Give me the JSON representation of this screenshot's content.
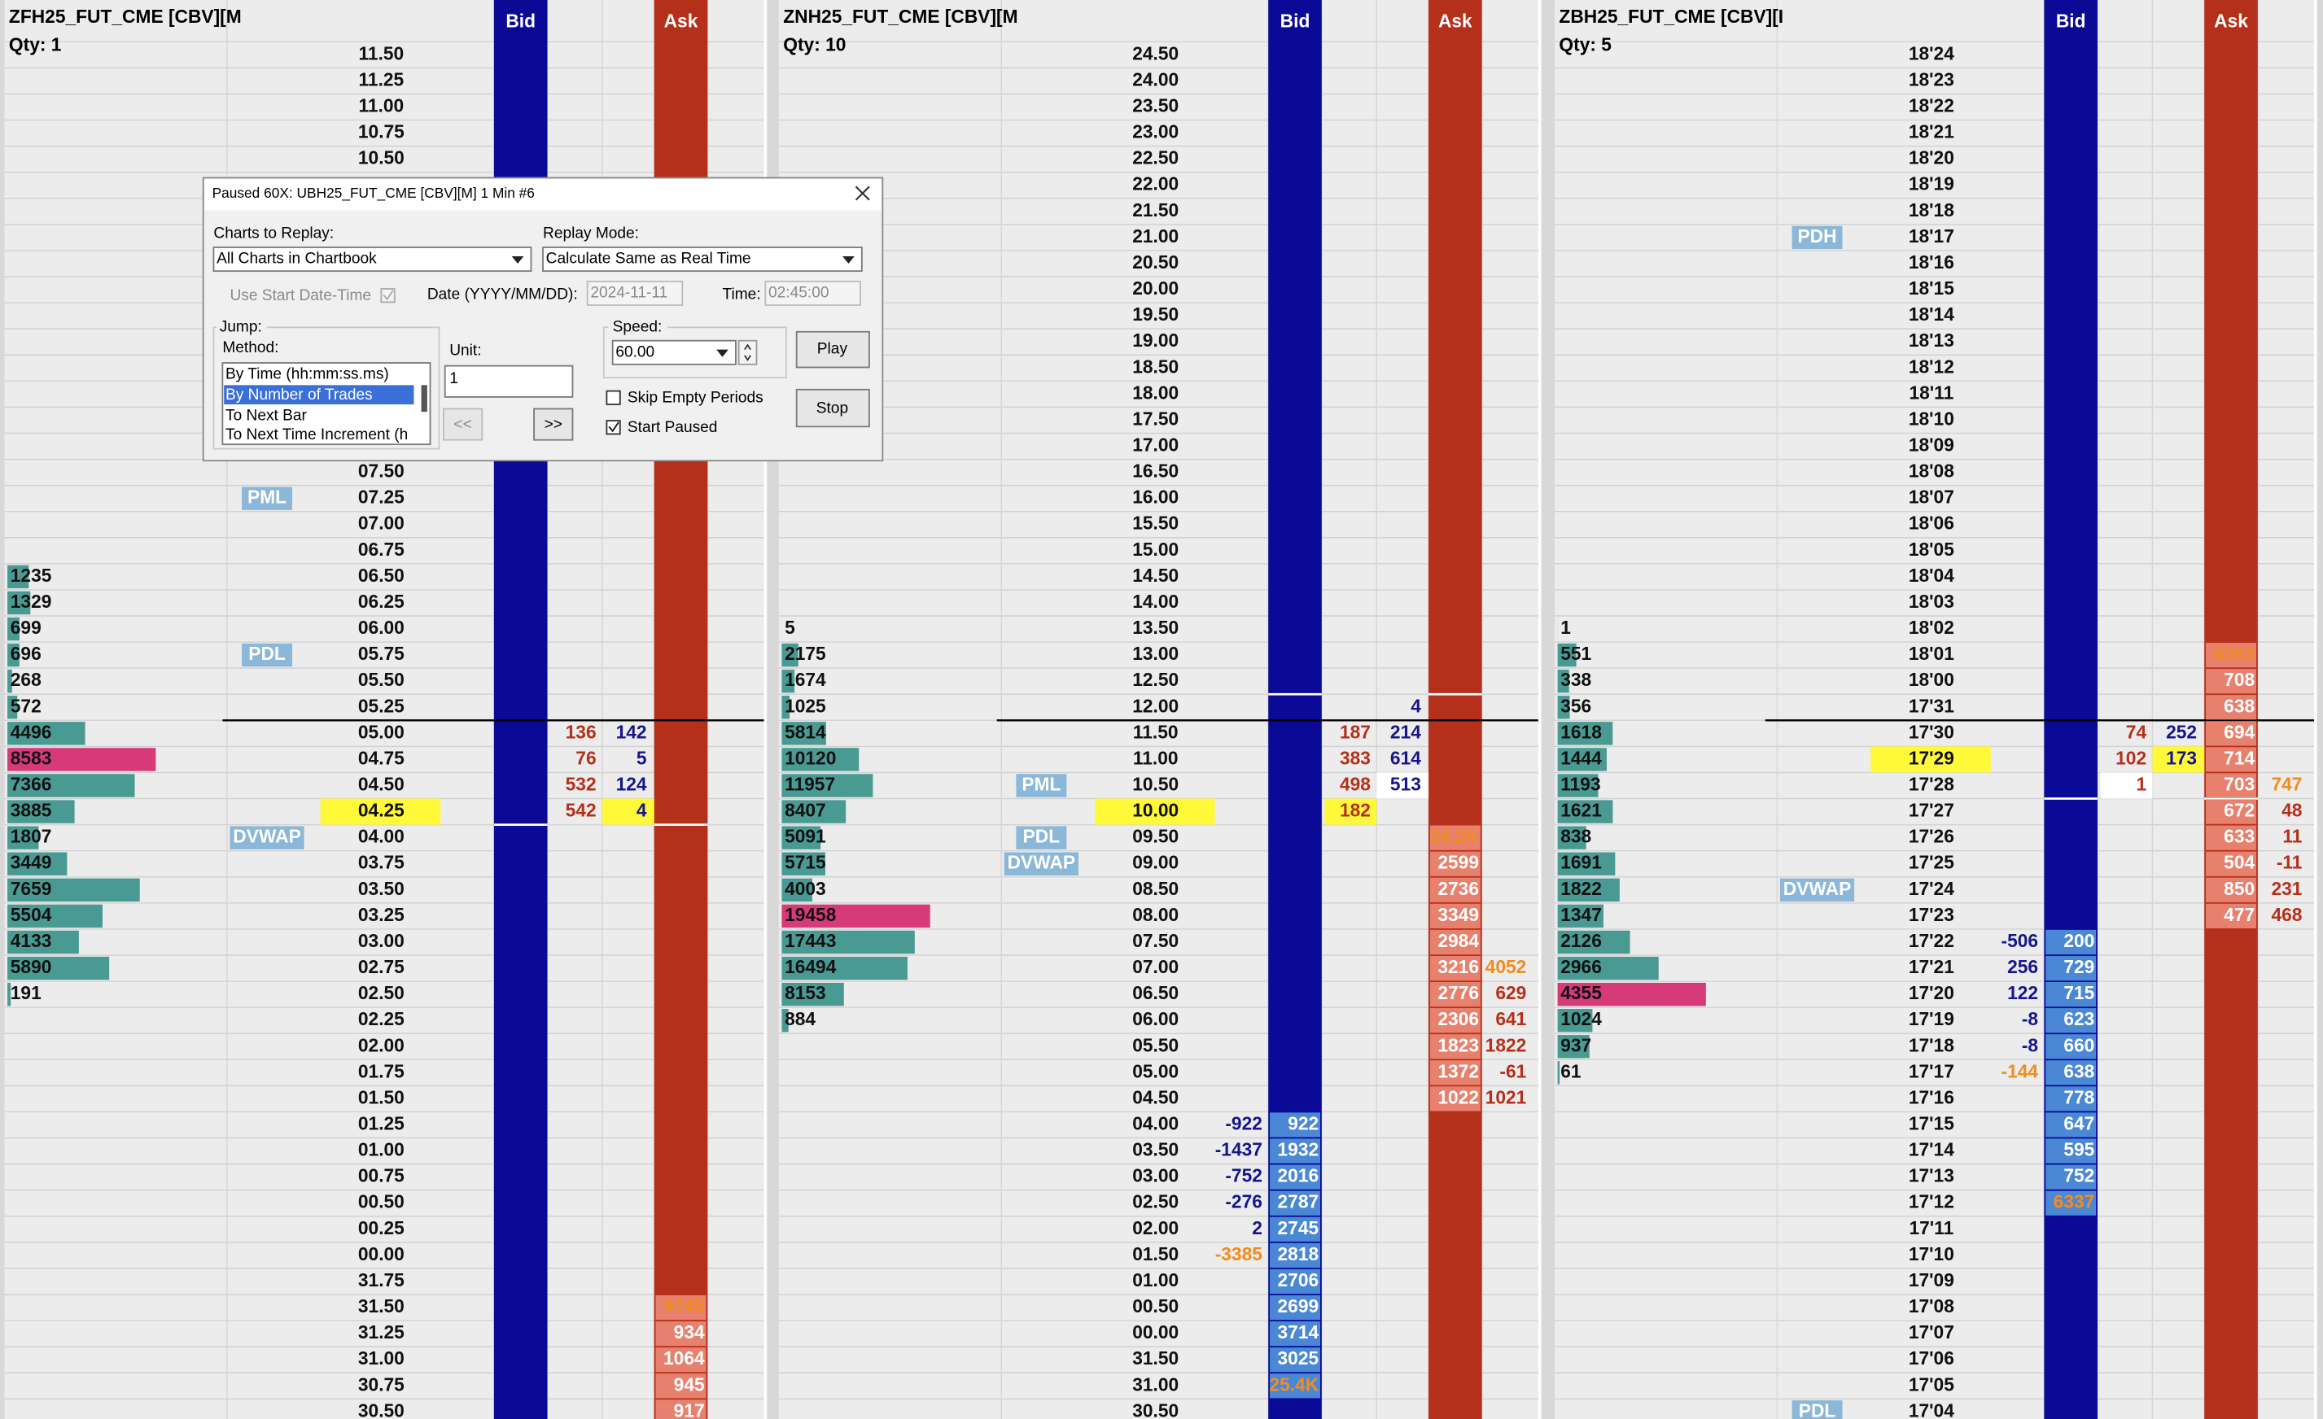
{
  "panels": [
    {
      "title": "ZFH25_FUT_CME [CBV][M",
      "qty": "Qty: 1",
      "bid_header": "Bid",
      "ask_header": "Ask",
      "rows": [
        {
          "price": "11.50"
        },
        {
          "price": "11.25"
        },
        {
          "price": "11.00"
        },
        {
          "price": "10.75"
        },
        {
          "price": "10.50"
        },
        null,
        null,
        null,
        null,
        null,
        null,
        null,
        null,
        null,
        null,
        null,
        {
          "price": "07.50"
        },
        {
          "price": "07.25",
          "label": "PML"
        },
        {
          "price": "07.00"
        },
        {
          "price": "06.75"
        },
        {
          "price": "06.50",
          "volume": 1235
        },
        {
          "price": "06.25",
          "volume": 1329
        },
        {
          "price": "06.00",
          "volume": 699
        },
        {
          "price": "05.75",
          "volume": 696,
          "label": "PDL"
        },
        {
          "price": "05.50",
          "volume": 268
        },
        {
          "price": "05.25",
          "volume": 572
        },
        {
          "price": "05.00",
          "volume": 4496,
          "sell": 136,
          "buy": 142
        },
        {
          "price": "04.75",
          "volume": 8583,
          "sell": 76,
          "buy": 5,
          "styles": {
            "volume": "max"
          }
        },
        {
          "price": "04.50",
          "volume": 7366,
          "sell": 532,
          "buy": 124
        },
        {
          "price": "04.25",
          "volume": 3885,
          "sell": 542,
          "buy": 4,
          "styles": {
            "price": "yellow",
            "buy": "yellow"
          }
        },
        {
          "price": "04.00",
          "volume": 1807,
          "label": "DVWAP"
        },
        {
          "price": "03.75",
          "volume": 3449
        },
        {
          "price": "03.50",
          "volume": 7659
        },
        {
          "price": "03.25",
          "volume": 5504
        },
        {
          "price": "03.00",
          "volume": 4133
        },
        {
          "price": "02.75",
          "volume": 5890
        },
        {
          "price": "02.50",
          "volume": 191
        },
        {
          "price": "02.25"
        },
        {
          "price": "02.00"
        },
        {
          "price": "01.75"
        },
        {
          "price": "01.50"
        },
        {
          "price": "01.25"
        },
        {
          "price": "01.00"
        },
        {
          "price": "00.75"
        },
        {
          "price": "00.50"
        },
        {
          "price": "00.25"
        },
        {
          "price": "00.00"
        },
        {
          "price": "31.75"
        },
        {
          "price": "31.50",
          "ask": 9745,
          "styles": {
            "ask": "orange"
          }
        },
        {
          "price": "31.25",
          "ask": 934
        },
        {
          "price": "31.00",
          "ask": 1064
        },
        {
          "price": "30.75",
          "ask": 945
        },
        {
          "price": "30.50",
          "ask": 917
        }
      ]
    },
    {
      "title": "ZNH25_FUT_CME [CBV][M",
      "qty": "Qty: 10",
      "bid_header": "Bid",
      "ask_header": "Ask",
      "rows": [
        {
          "price": "24.50"
        },
        {
          "price": "24.00"
        },
        {
          "price": "23.50"
        },
        {
          "price": "23.00"
        },
        {
          "price": "22.50"
        },
        {
          "price": "22.00"
        },
        {
          "price": "21.50"
        },
        {
          "price": "21.00"
        },
        {
          "price": "20.50"
        },
        {
          "price": "20.00"
        },
        {
          "price": "19.50"
        },
        {
          "price": "19.00"
        },
        {
          "price": "18.50"
        },
        {
          "price": "18.00"
        },
        {
          "price": "17.50"
        },
        {
          "price": "17.00"
        },
        {
          "price": "16.50"
        },
        {
          "price": "16.00"
        },
        {
          "price": "15.50"
        },
        {
          "price": "15.00"
        },
        {
          "price": "14.50"
        },
        {
          "price": "14.00"
        },
        {
          "price": "13.50",
          "volume": 5
        },
        {
          "price": "13.00",
          "volume": 2175
        },
        {
          "price": "12.50",
          "volume": 1674
        },
        {
          "price": "12.00",
          "volume": 1025,
          "buy": 4
        },
        {
          "price": "11.50",
          "volume": 5814,
          "sell": 187,
          "buy": 214
        },
        {
          "price": "11.00",
          "volume": 10120,
          "sell": 383,
          "buy": 614
        },
        {
          "price": "10.50",
          "volume": 11957,
          "label": "PML",
          "sell": 498,
          "buy": 513,
          "styles": {
            "buy": "white"
          }
        },
        {
          "price": "10.00",
          "volume": 8407,
          "sell": 182,
          "styles": {
            "price": "yellow",
            "sell": "yellow"
          }
        },
        {
          "price": "09.50",
          "volume": 5091,
          "label": "PDL",
          "ask": "24.2K",
          "styles": {
            "ask": "orange"
          }
        },
        {
          "price": "09.00",
          "volume": 5715,
          "label": "DVWAP",
          "ask": 2599
        },
        {
          "price": "08.50",
          "volume": 4003,
          "ask": 2736
        },
        {
          "price": "08.00",
          "volume": 19458,
          "ask": 3349,
          "styles": {
            "volume": "max"
          }
        },
        {
          "price": "07.50",
          "volume": 17443,
          "ask": 2984
        },
        {
          "price": "07.00",
          "volume": 16494,
          "ask": 3216,
          "ask_delta": 4052,
          "styles": {
            "ask_delta": "orange"
          }
        },
        {
          "price": "06.50",
          "volume": 8153,
          "ask": 2776,
          "ask_delta": 629
        },
        {
          "price": "06.00",
          "volume": 884,
          "ask": 2306,
          "ask_delta": 641
        },
        {
          "price": "05.50",
          "ask": 1823,
          "ask_delta": 1822
        },
        {
          "price": "05.00",
          "ask": 1372,
          "ask_delta": -61
        },
        {
          "price": "04.50",
          "ask": 1022,
          "ask_delta": 1021
        },
        {
          "price": "04.00",
          "delta": -922,
          "bid": 922
        },
        {
          "price": "03.50",
          "delta": -1437,
          "bid": 1932
        },
        {
          "price": "03.00",
          "delta": -752,
          "bid": 2016
        },
        {
          "price": "02.50",
          "delta": -276,
          "bid": 2787
        },
        {
          "price": "02.00",
          "delta": 2,
          "bid": 2745
        },
        {
          "price": "01.50",
          "delta": -3385,
          "bid": 2818,
          "styles": {
            "delta": "orange"
          }
        },
        {
          "price": "01.00",
          "bid": 2706
        },
        {
          "price": "00.50",
          "bid": 2699
        },
        {
          "price": "00.00",
          "bid": 3714
        },
        {
          "price": "31.50",
          "bid": 3025
        },
        {
          "price": "31.00",
          "bid": "25.4K",
          "styles": {
            "bid": "orange"
          }
        },
        {
          "price": "30.50"
        }
      ]
    },
    {
      "title": "ZBH25_FUT_CME [CBV][I",
      "qty": "Qty: 5",
      "bid_header": "Bid",
      "ask_header": "Ask",
      "rows": [
        {
          "price": "18'24"
        },
        {
          "price": "18'23"
        },
        {
          "price": "18'22"
        },
        {
          "price": "18'21"
        },
        {
          "price": "18'20"
        },
        {
          "price": "18'19"
        },
        {
          "price": "18'18"
        },
        {
          "price": "18'17",
          "label": "PDH"
        },
        {
          "price": "18'16"
        },
        {
          "price": "18'15"
        },
        {
          "price": "18'14"
        },
        {
          "price": "18'13"
        },
        {
          "price": "18'12"
        },
        {
          "price": "18'11"
        },
        {
          "price": "18'10"
        },
        {
          "price": "18'09"
        },
        {
          "price": "18'08"
        },
        {
          "price": "18'07"
        },
        {
          "price": "18'06"
        },
        {
          "price": "18'05"
        },
        {
          "price": "18'04"
        },
        {
          "price": "18'03"
        },
        {
          "price": "18'02",
          "volume": 1
        },
        {
          "price": "18'01",
          "volume": 551,
          "ask": 6593,
          "styles": {
            "ask": "orange"
          }
        },
        {
          "price": "18'00",
          "volume": 338,
          "ask": 708
        },
        {
          "price": "17'31",
          "volume": 356,
          "ask": 638
        },
        {
          "price": "17'30",
          "volume": 1618,
          "sell": 74,
          "buy": 252,
          "ask": 694
        },
        {
          "price": "17'29",
          "volume": 1444,
          "sell": 102,
          "buy": 173,
          "ask": 714,
          "styles": {
            "price": "yellow",
            "buy": "yellow"
          }
        },
        {
          "price": "17'28",
          "volume": 1193,
          "sell": 1,
          "ask": 703,
          "ask_delta": 747,
          "styles": {
            "sell": "white",
            "ask_delta": "orange"
          }
        },
        {
          "price": "17'27",
          "volume": 1621,
          "ask": 672,
          "ask_delta": 48
        },
        {
          "price": "17'26",
          "volume": 838,
          "ask": 633,
          "ask_delta": 11
        },
        {
          "price": "17'25",
          "volume": 1691,
          "ask": 504,
          "ask_delta": -11
        },
        {
          "price": "17'24",
          "volume": 1822,
          "label": "DVWAP",
          "ask": 850,
          "ask_delta": 231
        },
        {
          "price": "17'23",
          "volume": 1347,
          "ask": 477,
          "ask_delta": 468
        },
        {
          "price": "17'22",
          "volume": 2126,
          "delta": -506,
          "bid": 200
        },
        {
          "price": "17'21",
          "volume": 2966,
          "delta": 256,
          "bid": 729
        },
        {
          "price": "17'20",
          "volume": 4355,
          "delta": 122,
          "bid": 715,
          "styles": {
            "volume": "max"
          }
        },
        {
          "price": "17'19",
          "volume": 1024,
          "delta": -8,
          "bid": 623
        },
        {
          "price": "17'18",
          "volume": 937,
          "delta": -8,
          "bid": 660
        },
        {
          "price": "17'17",
          "volume": 61,
          "delta": -144,
          "bid": 638,
          "styles": {
            "delta": "orange"
          }
        },
        {
          "price": "17'16",
          "bid": 778
        },
        {
          "price": "17'15",
          "bid": 647
        },
        {
          "price": "17'14",
          "bid": 595
        },
        {
          "price": "17'13",
          "bid": 752
        },
        {
          "price": "17'12",
          "bid": 6337,
          "styles": {
            "bid": "orange"
          }
        },
        {
          "price": "17'11"
        },
        {
          "price": "17'10"
        },
        {
          "price": "17'09"
        },
        {
          "price": "17'08"
        },
        {
          "price": "17'07"
        },
        {
          "price": "17'06"
        },
        {
          "price": "17'05"
        },
        {
          "price": "17'04",
          "label": "PDL"
        }
      ]
    }
  ],
  "dialog": {
    "title": "Paused 60X: UBH25_FUT_CME [CBV][M]  1 Min  #6",
    "charts_label": "Charts to Replay:",
    "charts_value": "All Charts in Chartbook",
    "mode_label": "Replay Mode:",
    "mode_value": "Calculate Same as Real Time",
    "use_start": "Use Start Date-Time",
    "date_label": "Date (YYYY/MM/DD):",
    "date_value": "2024-11-11",
    "time_label": "Time:",
    "time_value": "02:45:00",
    "jump_label": "Jump:",
    "method_label": "Method:",
    "method_options": [
      "By Time (hh:mm:ss.ms)",
      "By Number of Trades",
      "To Next Bar",
      "To Next Time Increment (h"
    ],
    "unit_label": "Unit:",
    "unit_value": "1",
    "back_button": "<<",
    "forward_button": ">>",
    "speed_label": "Speed:",
    "speed_value": "60.00",
    "play_button": "Play",
    "stop_button": "Stop",
    "skip_empty": "Skip Empty Periods",
    "start_paused": "Start Paused"
  }
}
